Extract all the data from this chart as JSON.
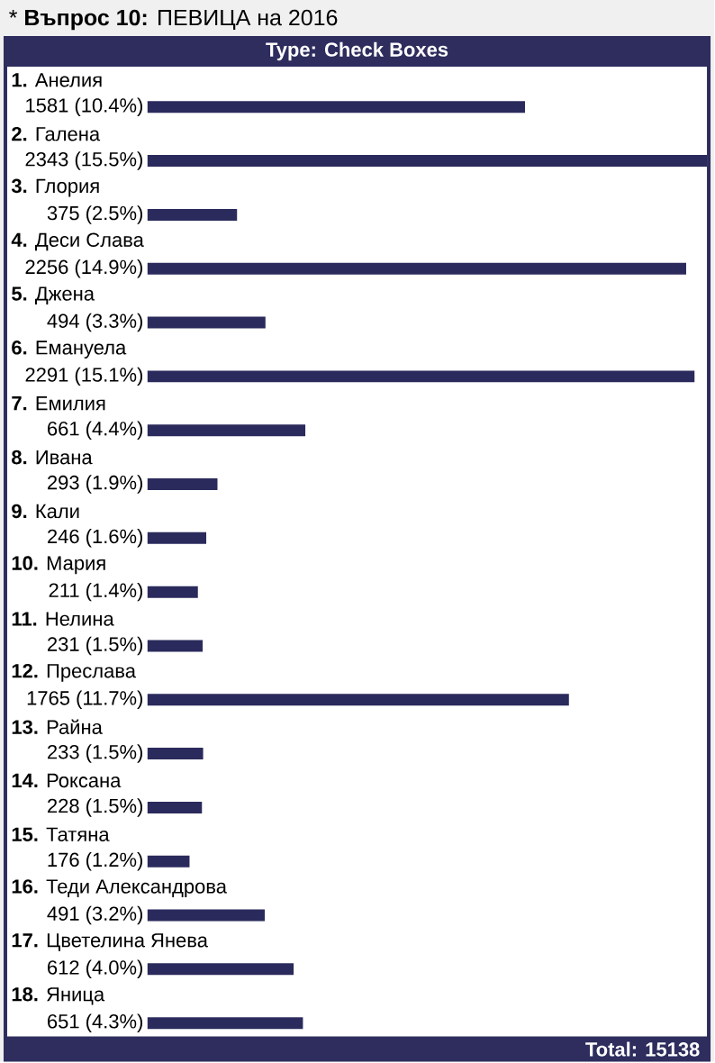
{
  "chart_data": {
    "type": "bar",
    "orientation": "horizontal",
    "title": "* **Въпрос 10:** ПЕВИЦА на 2016",
    "categories": [
      "**1.** Анелия",
      "**2.** Галена",
      "**3.** Глория",
      "**4.** Деси Слава",
      "**5.** Джена",
      "**6.** Емануела",
      "**7.** Емилия",
      "**8.** Ивана",
      "**9.** Кали",
      "**10.** Мария",
      "**11.** Нелина",
      "**12.** Преслава",
      "**13.** Райна",
      "**14.** Роксана",
      "**15.** Татяна",
      "**16.** Теди Александрова",
      "**17.** Цветелина Янева",
      "**18.** Яница"
    ],
    "values": [
      1581,
      2343,
      375,
      2256,
      494,
      2291,
      661,
      293,
      246,
      211,
      231,
      1765,
      233,
      228,
      176,
      491,
      612,
      651
    ],
    "value_labels": [
      "1581 (10.4%)",
      "2343 (15.5%)",
      "375 (2.5%)",
      "2256 (14.9%)",
      "494 (3.3%)",
      "2291 (15.1%)",
      "661 (4.4%)",
      "293 (1.9%)",
      "246 (1.6%)",
      "211 (1.4%)",
      "231 (1.5%)",
      "1765 (11.7%)",
      "233 (1.5%)",
      "228 (1.5%)",
      "176 (1.2%)",
      "491 (3.2%)",
      "612 (4.0%)",
      "651 (4.3%)"
    ],
    "color": "#2b2a5c",
    "annotations": [
      "**Type:** Check Boxes",
      "**Total:** 15138"
    ]
  }
}
